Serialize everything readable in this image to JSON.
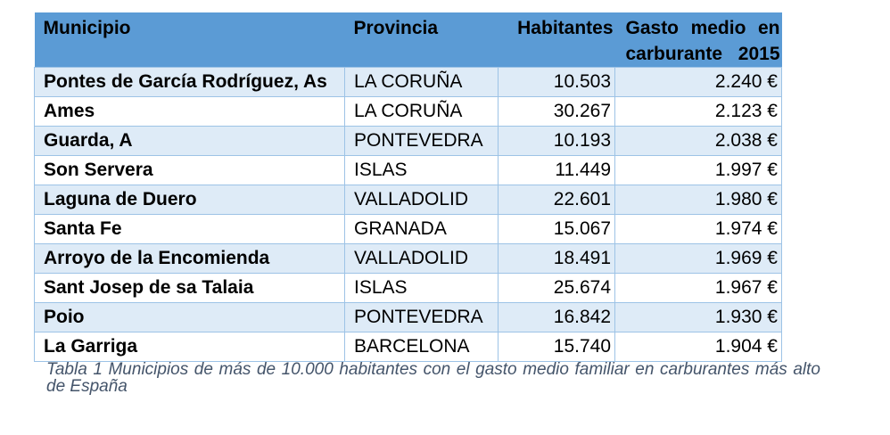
{
  "table": {
    "headers": {
      "municipio": "Municipio",
      "provincia": "Provincia",
      "habitantes": "Habitantes",
      "gasto_line1": "Gasto medio en",
      "gasto_line2": "carburante 2015"
    },
    "rows": [
      {
        "municipio": "Pontes de García Rodríguez, As",
        "provincia": "LA CORUÑA",
        "habitantes": "10.503",
        "gasto": "2.240 €"
      },
      {
        "municipio": "Ames",
        "provincia": "LA CORUÑA",
        "habitantes": "30.267",
        "gasto": "2.123 €"
      },
      {
        "municipio": "Guarda, A",
        "provincia": "PONTEVEDRA",
        "habitantes": "10.193",
        "gasto": "2.038 €"
      },
      {
        "municipio": "Son Servera",
        "provincia": "ISLAS",
        "habitantes": "11.449",
        "gasto": "1.997 €"
      },
      {
        "municipio": "Laguna de Duero",
        "provincia": "VALLADOLID",
        "habitantes": "22.601",
        "gasto": "1.980 €"
      },
      {
        "municipio": "Santa Fe",
        "provincia": "GRANADA",
        "habitantes": "15.067",
        "gasto": "1.974 €"
      },
      {
        "municipio": "Arroyo de la Encomienda",
        "provincia": "VALLADOLID",
        "habitantes": "18.491",
        "gasto": "1.969 €"
      },
      {
        "municipio": "Sant Josep de sa Talaia",
        "provincia": "ISLAS",
        "habitantes": "25.674",
        "gasto": "1.967 €"
      },
      {
        "municipio": "Poio",
        "provincia": "PONTEVEDRA",
        "habitantes": "16.842",
        "gasto": "1.930 €"
      },
      {
        "municipio": "La Garriga",
        "provincia": "BARCELONA",
        "habitantes": "15.740",
        "gasto": "1.904 €"
      }
    ]
  },
  "caption": "Tabla 1 Municipios de más de 10.000 habitantes con el gasto medio familiar en carburantes más alto de España",
  "colors": {
    "header_bg": "#5b9bd5",
    "band_bg": "#deebf7",
    "border": "#9dc3e6",
    "caption_text": "#44546a"
  }
}
